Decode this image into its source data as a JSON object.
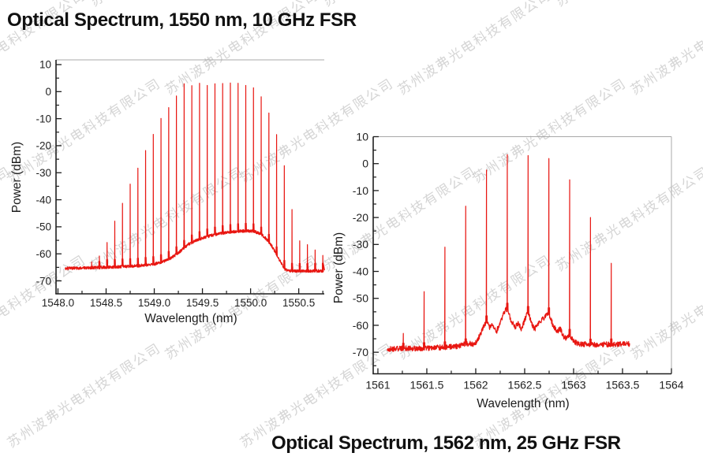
{
  "watermark": {
    "text": "苏州波弗光电科技有限公司",
    "color": "rgba(178,178,178,0.55)"
  },
  "colors": {
    "trace": "#e81611",
    "axis": "#1f1f1f",
    "frame": "#a8a8a8",
    "background": "#ffffff"
  },
  "chart_data": [
    {
      "type": "line",
      "title": "Optical Spectrum, 1550 nm, 10 GHz FSR",
      "xlabel": "Wavelength (nm)",
      "ylabel": "Power (dBm)",
      "xlim": [
        1547.98,
        1550.765
      ],
      "ylim": [
        -74.8,
        11.75
      ],
      "x_major_ticks": [
        1548.0,
        1548.5,
        1549.0,
        1549.5,
        1550.0,
        1550.5
      ],
      "x_major_labels": [
        "1548.0",
        "1548.5",
        "1549.0",
        "1549.5",
        "1550.0",
        "1550.5"
      ],
      "x_minor_ticks": [
        1548.25,
        1548.75,
        1549.25,
        1549.75,
        1550.25,
        1550.75
      ],
      "y_major_ticks": [
        10,
        0,
        -10,
        -20,
        -30,
        -40,
        -50,
        -60,
        -70
      ],
      "y_major_labels": [
        "10",
        "0",
        "-10",
        "-20",
        "-30",
        "-40",
        "-50",
        "-60",
        "-70"
      ],
      "y_minor_ticks": [
        5,
        -5,
        -15,
        -25,
        -35,
        -45,
        -55,
        -65
      ],
      "comb_spacing_ghz": 10,
      "trace": {
        "x_start": 1548.075,
        "x_end": 1550.755,
        "step": 0.002,
        "noise_db": 0.55,
        "seed": 3,
        "needle_halfwidth_nm": 0.005,
        "skirt_db": 2.8,
        "skirt_halfwidth_nm": 0.018,
        "envelope": [
          [
            1548.075,
            -65.4
          ],
          [
            1548.3,
            -65.2
          ],
          [
            1548.55,
            -64.9
          ],
          [
            1548.8,
            -64.5
          ],
          [
            1549.0,
            -63.8
          ],
          [
            1549.1,
            -62.8
          ],
          [
            1549.2,
            -61.0
          ],
          [
            1549.28,
            -58.8
          ],
          [
            1549.35,
            -56.5
          ],
          [
            1549.45,
            -54.8
          ],
          [
            1549.55,
            -53.6
          ],
          [
            1549.65,
            -52.7
          ],
          [
            1549.75,
            -52.1
          ],
          [
            1549.85,
            -51.7
          ],
          [
            1549.95,
            -51.5
          ],
          [
            1550.02,
            -51.6
          ],
          [
            1550.08,
            -52.2
          ],
          [
            1550.14,
            -53.6
          ],
          [
            1550.2,
            -56.0
          ],
          [
            1550.26,
            -59.5
          ],
          [
            1550.31,
            -63.0
          ],
          [
            1550.36,
            -65.8
          ],
          [
            1550.42,
            -66.3
          ],
          [
            1550.55,
            -66.4
          ],
          [
            1550.755,
            -66.3
          ]
        ],
        "peaks": [
          [
            1548.35,
            -63.0
          ],
          [
            1548.43,
            -60.8
          ],
          [
            1548.51,
            -55.8
          ],
          [
            1548.59,
            -47.9
          ],
          [
            1548.67,
            -41.3
          ],
          [
            1548.75,
            -34.2
          ],
          [
            1548.83,
            -28.3
          ],
          [
            1548.91,
            -21.8
          ],
          [
            1548.99,
            -15.8
          ],
          [
            1549.07,
            -9.9
          ],
          [
            1549.15,
            -5.9
          ],
          [
            1549.23,
            -1.6
          ],
          [
            1549.31,
            2.9
          ],
          [
            1549.39,
            2.2
          ],
          [
            1549.47,
            3.1
          ],
          [
            1549.55,
            2.3
          ],
          [
            1549.63,
            2.9
          ],
          [
            1549.71,
            3.0
          ],
          [
            1549.79,
            3.2
          ],
          [
            1549.87,
            3.1
          ],
          [
            1549.95,
            2.3
          ],
          [
            1550.03,
            1.4
          ],
          [
            1550.11,
            -1.9
          ],
          [
            1550.19,
            -7.9
          ],
          [
            1550.27,
            -15.9
          ],
          [
            1550.35,
            -27.4
          ],
          [
            1550.43,
            -43.6
          ],
          [
            1550.51,
            -55.2
          ],
          [
            1550.59,
            -56.6
          ],
          [
            1550.67,
            -58.6
          ],
          [
            1550.75,
            -60.6
          ]
        ]
      }
    },
    {
      "type": "line",
      "title": "Optical Spectrum, 1562 nm, 25 GHz FSR",
      "xlabel": "Wavelength (nm)",
      "ylabel": "Power (dBm)",
      "xlim": [
        1560.952,
        1564.0
      ],
      "ylim": [
        -78.0,
        10.0
      ],
      "x_major_ticks": [
        1561,
        1561.5,
        1562,
        1562.5,
        1563,
        1563.5,
        1564
      ],
      "x_major_labels": [
        "1561",
        "1561.5",
        "1562",
        "1562.5",
        "1563",
        "1563.5",
        "1564"
      ],
      "x_minor_ticks": [
        1561.25,
        1561.75,
        1562.25,
        1562.75,
        1563.25,
        1563.75
      ],
      "y_major_ticks": [
        10,
        0,
        -10,
        -20,
        -30,
        -40,
        -50,
        -60,
        -70
      ],
      "y_major_labels": [
        "10",
        "0",
        "-10",
        "-20",
        "-30",
        "-40",
        "-50",
        "-60",
        "-70"
      ],
      "y_minor_ticks": [
        5,
        -5,
        -15,
        -25,
        -35,
        -45,
        -55,
        -65,
        -75
      ],
      "comb_spacing_ghz": 25,
      "trace": {
        "x_start": 1561.095,
        "x_end": 1563.575,
        "step": 0.0025,
        "noise_db": 1.0,
        "seed": 9,
        "needle_halfwidth_nm": 0.007,
        "skirt_db": 2.0,
        "skirt_halfwidth_nm": 0.02,
        "envelope": [
          [
            1561.095,
            -68.8
          ],
          [
            1561.35,
            -68.6
          ],
          [
            1561.6,
            -68.3
          ],
          [
            1561.8,
            -67.9
          ],
          [
            1561.92,
            -66.8
          ],
          [
            1561.99,
            -66.9
          ],
          [
            1562.04,
            -64.0
          ],
          [
            1562.08,
            -60.5
          ],
          [
            1562.11,
            -58.5
          ],
          [
            1562.14,
            -60.8
          ],
          [
            1562.175,
            -60.0
          ],
          [
            1562.21,
            -62.5
          ],
          [
            1562.26,
            -58.0
          ],
          [
            1562.3,
            -54.5
          ],
          [
            1562.3225,
            -53.8
          ],
          [
            1562.36,
            -58.0
          ],
          [
            1562.4,
            -60.8
          ],
          [
            1562.435,
            -59.3
          ],
          [
            1562.465,
            -61.5
          ],
          [
            1562.5,
            -58.0
          ],
          [
            1562.535,
            -55.0
          ],
          [
            1562.57,
            -59.0
          ],
          [
            1562.6,
            -61.5
          ],
          [
            1562.63,
            -60.0
          ],
          [
            1562.66,
            -58.5
          ],
          [
            1562.7,
            -57.0
          ],
          [
            1562.7475,
            -55.5
          ],
          [
            1562.79,
            -60.0
          ],
          [
            1562.83,
            -62.5
          ],
          [
            1562.86,
            -61.0
          ],
          [
            1562.895,
            -64.0
          ],
          [
            1562.93,
            -65.0
          ],
          [
            1562.96,
            -63.5
          ],
          [
            1563.0,
            -66.0
          ],
          [
            1563.07,
            -67.0
          ],
          [
            1563.25,
            -67.2
          ],
          [
            1563.45,
            -67.0
          ],
          [
            1563.575,
            -67.0
          ]
        ],
        "peaks": [
          [
            1561.26,
            -63.0
          ],
          [
            1561.4725,
            -47.5
          ],
          [
            1561.685,
            -31.0
          ],
          [
            1561.8975,
            -15.8
          ],
          [
            1562.11,
            -2.4
          ],
          [
            1562.3225,
            3.3
          ],
          [
            1562.535,
            3.0
          ],
          [
            1562.7475,
            1.9
          ],
          [
            1562.96,
            -6.0
          ],
          [
            1563.1725,
            -20.0
          ],
          [
            1563.385,
            -37.0
          ]
        ]
      }
    }
  ]
}
